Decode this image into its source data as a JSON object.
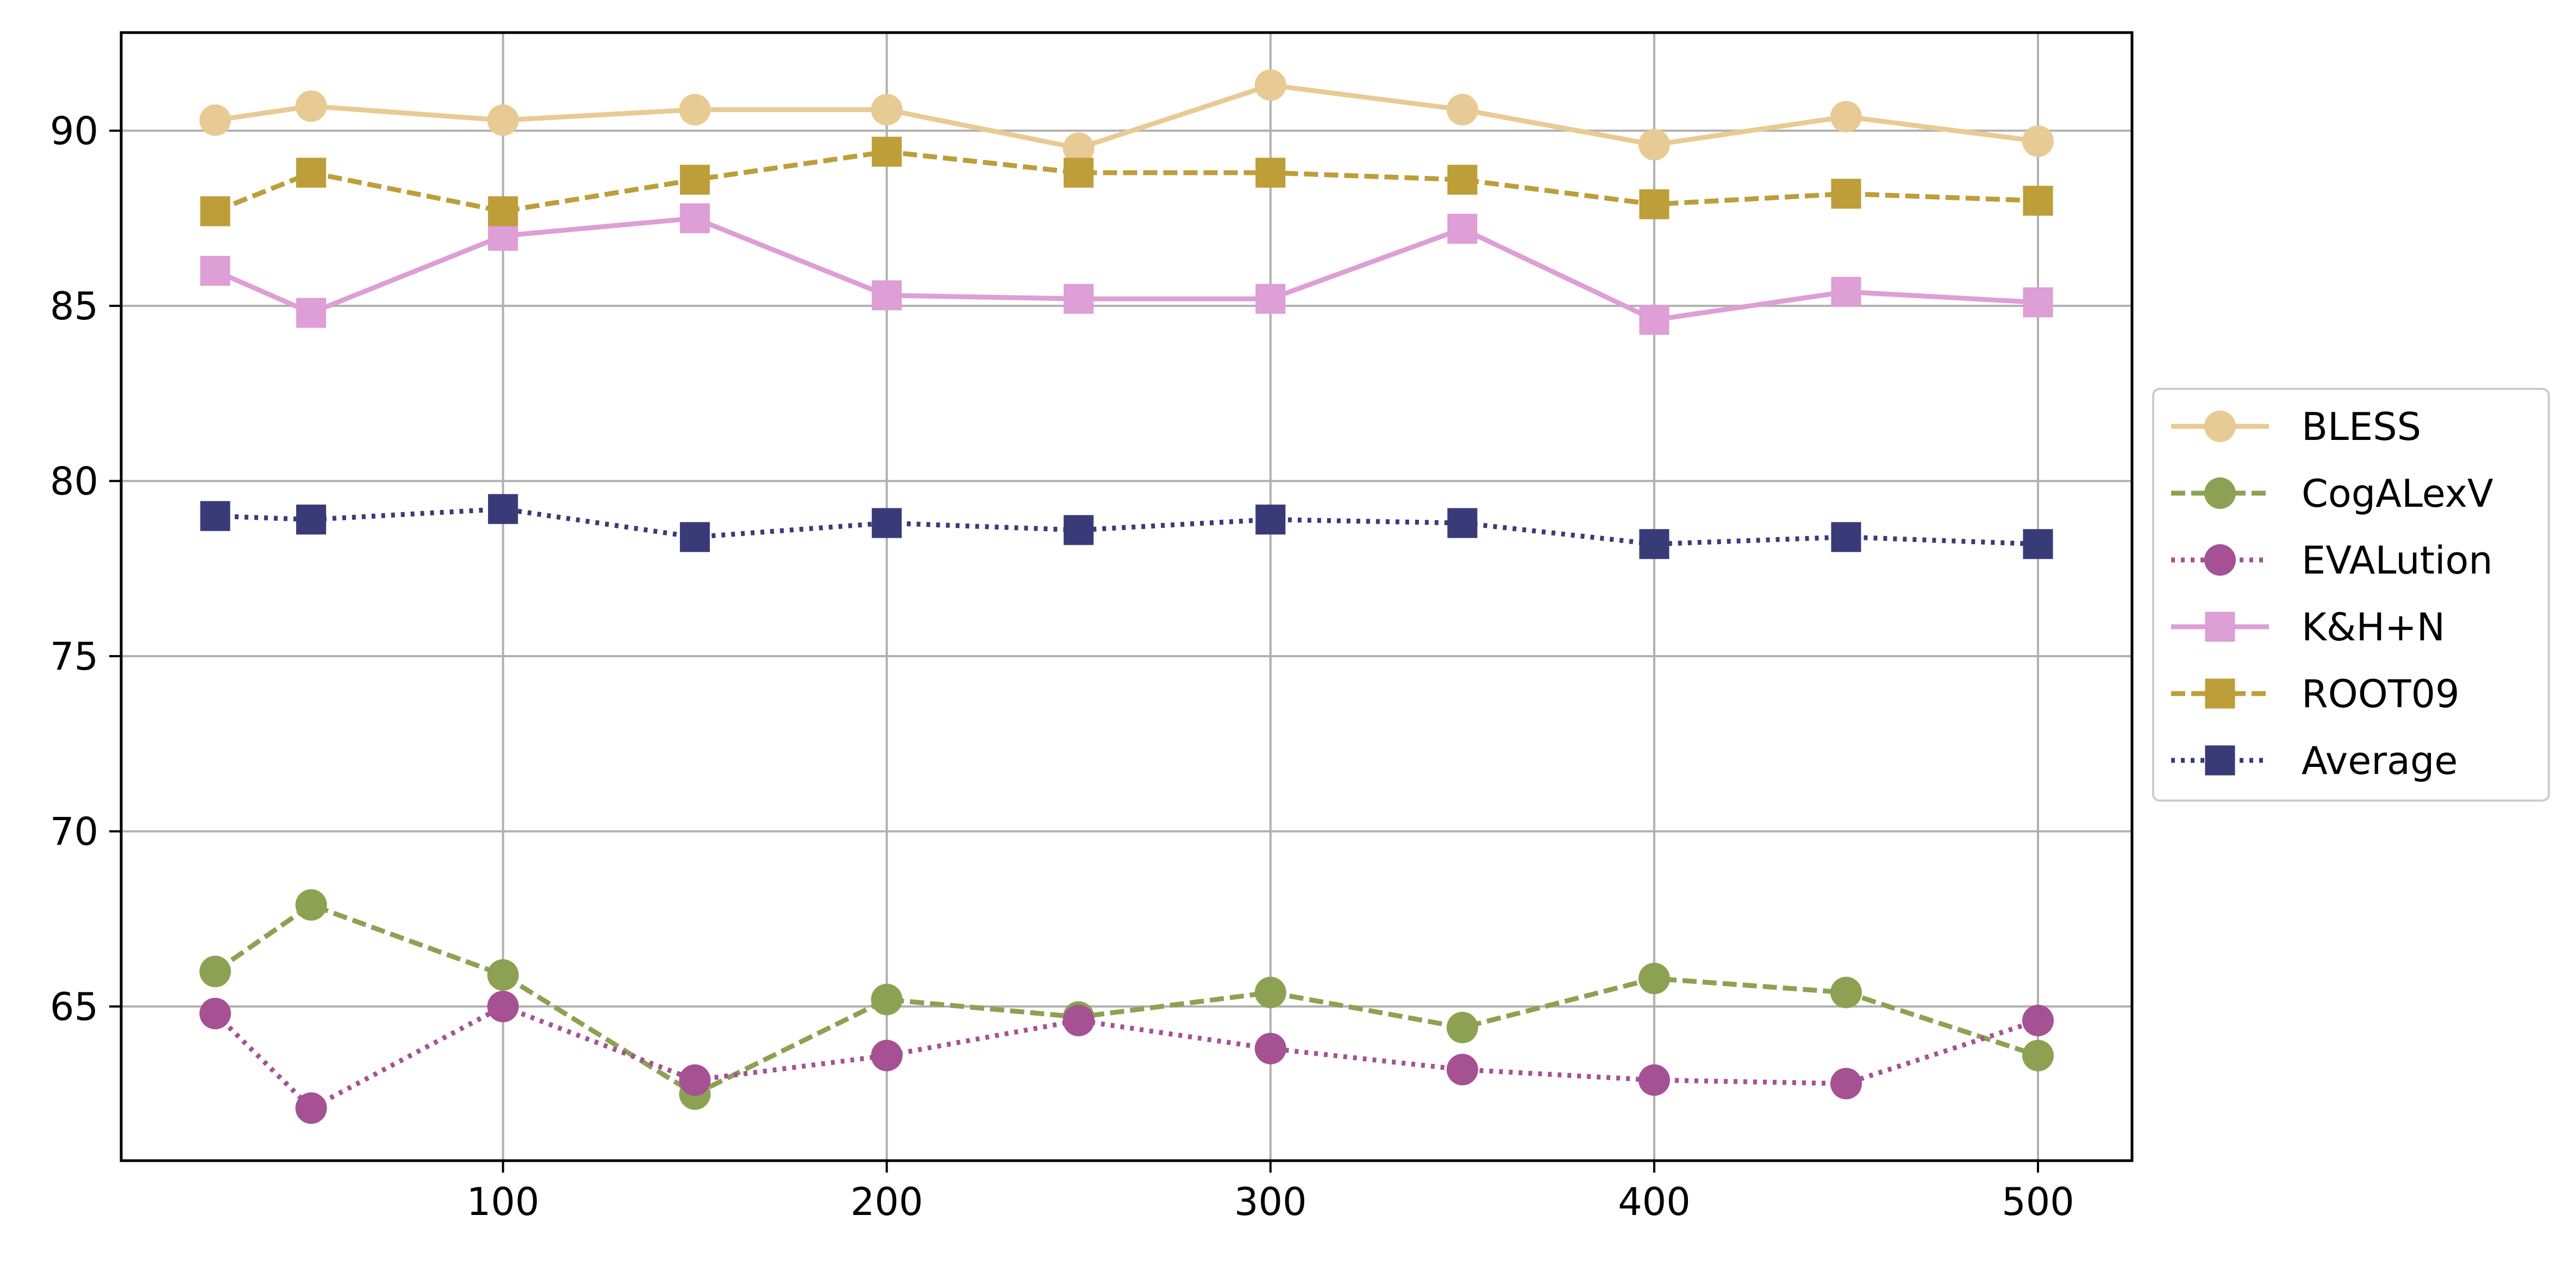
{
  "chart_data": {
    "type": "line",
    "title": "",
    "xlabel": "",
    "ylabel": "",
    "x": [
      25,
      50,
      100,
      150,
      200,
      250,
      300,
      350,
      400,
      450,
      500
    ],
    "xlim": [
      0.5,
      524.5
    ],
    "ylim": [
      60.6,
      92.8
    ],
    "xticks": [
      100,
      200,
      300,
      400,
      500
    ],
    "yticks": [
      65,
      70,
      75,
      80,
      85,
      90
    ],
    "grid": true,
    "legend_position": "center-right outside",
    "series": [
      {
        "name": "BLESS",
        "color": "#e8cb94",
        "linestyle": "solid",
        "marker": "circle",
        "values": [
          90.3,
          90.7,
          90.3,
          90.6,
          90.6,
          89.5,
          91.3,
          90.6,
          89.6,
          90.4,
          89.7
        ]
      },
      {
        "name": "CogALexV",
        "color": "#8ca252",
        "linestyle": "dashed",
        "marker": "circle",
        "values": [
          66.0,
          67.9,
          65.9,
          62.5,
          65.2,
          64.7,
          65.4,
          64.4,
          65.8,
          65.4,
          63.6
        ]
      },
      {
        "name": "EVALution",
        "color": "#a55194",
        "linestyle": "dotted",
        "marker": "circle",
        "values": [
          64.8,
          62.1,
          65.0,
          62.9,
          63.6,
          64.6,
          63.8,
          63.2,
          62.9,
          62.8,
          64.6
        ]
      },
      {
        "name": "K&H+N",
        "color": "#de9ed6",
        "linestyle": "solid",
        "marker": "square",
        "values": [
          86.0,
          84.8,
          87.0,
          87.5,
          85.3,
          85.2,
          85.2,
          87.2,
          84.6,
          85.4,
          85.1
        ]
      },
      {
        "name": "ROOT09",
        "color": "#bd9e39",
        "linestyle": "dashed",
        "marker": "square",
        "values": [
          87.7,
          88.8,
          87.7,
          88.6,
          89.4,
          88.8,
          88.8,
          88.6,
          87.9,
          88.2,
          88.0
        ]
      },
      {
        "name": "Average",
        "color": "#393b79",
        "linestyle": "dotted",
        "marker": "square",
        "values": [
          79.0,
          78.9,
          79.2,
          78.4,
          78.8,
          78.6,
          78.9,
          78.8,
          78.2,
          78.4,
          78.2
        ]
      }
    ]
  }
}
